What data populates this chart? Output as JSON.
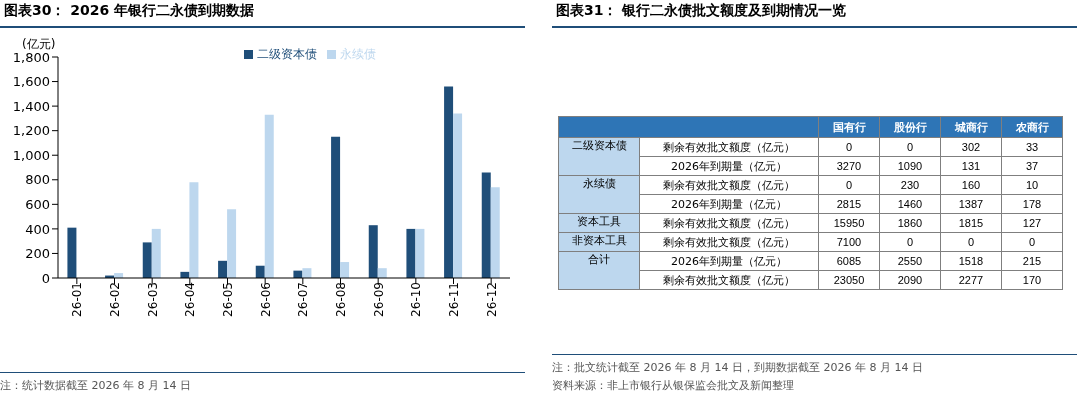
{
  "chart_data": [
    {
      "type": "bar",
      "title": "图表30：  2026 年银行二永债到期数据",
      "ylabel": "(亿元)",
      "categories": [
        "26-01",
        "26-02",
        "26-03",
        "26-04",
        "26-05",
        "26-06",
        "26-07",
        "26-08",
        "26-09",
        "26-10",
        "26-11",
        "26-12"
      ],
      "series": [
        {
          "name": "二级资本债",
          "color": "#1f4e79",
          "values": [
            410,
            20,
            290,
            50,
            140,
            100,
            60,
            1150,
            430,
            400,
            1560,
            860
          ]
        },
        {
          "name": "永续债",
          "color": "#bdd7ee",
          "values": [
            0,
            40,
            400,
            780,
            560,
            1330,
            80,
            130,
            80,
            400,
            1340,
            740
          ]
        }
      ],
      "ylim": [
        0,
        1800
      ],
      "yticks": [
        {
          "value": 0,
          "label": "0"
        },
        {
          "value": 200,
          "label": "200"
        },
        {
          "value": 400,
          "label": "400"
        },
        {
          "value": 600,
          "label": "600"
        },
        {
          "value": 800,
          "label": "800"
        },
        {
          "value": 1000,
          "label": "1,000"
        },
        {
          "value": 1200,
          "label": "1,200"
        },
        {
          "value": 1400,
          "label": "1,400"
        },
        {
          "value": 1600,
          "label": "1,600"
        },
        {
          "value": 1800,
          "label": "1,800"
        }
      ],
      "grid": false,
      "legend": "top",
      "annotations": [
        "注：统计数据截至 2026 年 8 月 14 日"
      ]
    },
    {
      "type": "heatmap",
      "title": "图表31：  银行二永债批文额度及到期情况一览",
      "categories": [
        "国有行",
        "股份行",
        "城商行",
        "农商行"
      ],
      "y_categories": [
        "剩余有效批文额度（亿元）",
        "2026年到期量（亿元）",
        "剩余有效批文额度（亿元）",
        "2026年到期量（亿元）",
        "剩余有效批文额度（亿元）",
        "剩余有效批文额度（亿元）",
        "2026年到期量（亿元）",
        "剩余有效批文额度（亿元）"
      ],
      "cells": [
        [
          0,
          0,
          302,
          33
        ],
        [
          3270,
          1090,
          131,
          37
        ],
        [
          0,
          230,
          160,
          10
        ],
        [
          2815,
          1460,
          1387,
          178
        ],
        [
          15950,
          1860,
          1815,
          127
        ],
        [
          7100,
          0,
          0,
          0
        ],
        [
          6085,
          2550,
          1518,
          215
        ],
        [
          23050,
          2090,
          2277,
          170
        ]
      ],
      "data_labels": true,
      "y2_categories": [
        "二级资本债",
        null,
        "永续债",
        null,
        "资本工具",
        "非资本工具",
        "合计",
        null
      ],
      "annotations": [
        "注：批文统计截至 2026 年 8 月 14 日，到期数据截至 2026 年 8 月 14 日",
        "资料来源：非上市银行从银保监会批文及新闻整理"
      ]
    }
  ]
}
